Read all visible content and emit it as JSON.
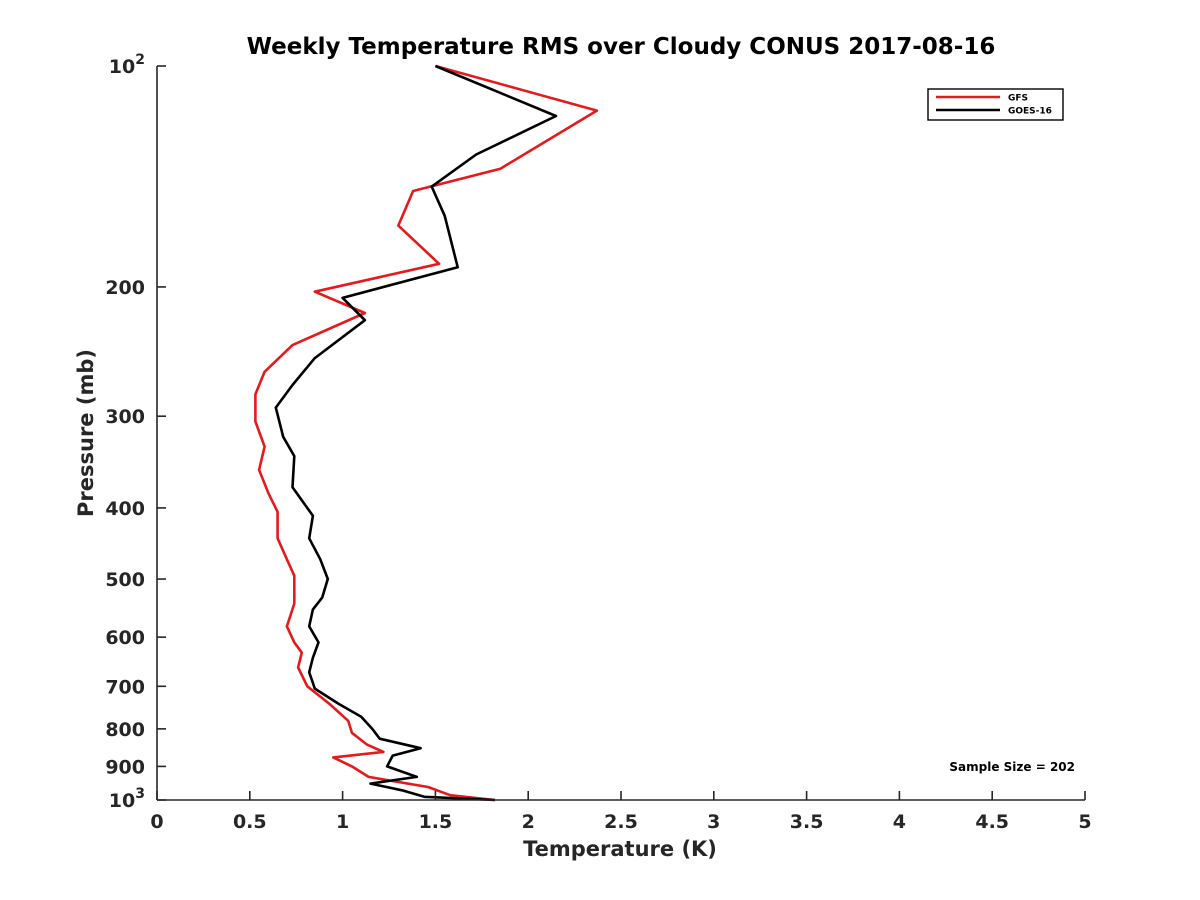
{
  "chart_data": {
    "type": "line",
    "title": "Weekly Temperature RMS over Cloudy CONUS 2017-08-16",
    "xlabel": "Temperature (K)",
    "ylabel": "Pressure (mb)",
    "xlim": [
      0,
      5
    ],
    "ylim": [
      100,
      1000
    ],
    "y_scale": "log",
    "y_reversed": true,
    "x_ticks": [
      0,
      0.5,
      1,
      1.5,
      2,
      2.5,
      3,
      3.5,
      4,
      4.5,
      5
    ],
    "x_tick_labels": [
      "0",
      "0.5",
      "1",
      "1.5",
      "2",
      "2.5",
      "3",
      "3.5",
      "4",
      "4.5",
      "5"
    ],
    "y_ticks": [
      100,
      200,
      300,
      400,
      500,
      600,
      700,
      800,
      900,
      1000
    ],
    "y_tick_labels": [
      {
        "base": "10",
        "exp": "2"
      },
      {
        "base": "200",
        "exp": ""
      },
      {
        "base": "300",
        "exp": ""
      },
      {
        "base": "400",
        "exp": ""
      },
      {
        "base": "500",
        "exp": ""
      },
      {
        "base": "600",
        "exp": ""
      },
      {
        "base": "700",
        "exp": ""
      },
      {
        "base": "800",
        "exp": ""
      },
      {
        "base": "900",
        "exp": ""
      },
      {
        "base": "10",
        "exp": "3"
      }
    ],
    "grid": false,
    "legend_position": "top-right",
    "annotation": "Sample Size = 202",
    "series": [
      {
        "name": "GFS",
        "color": "#e41a1c",
        "points": [
          [
            1.5,
            100
          ],
          [
            2.37,
            115
          ],
          [
            1.85,
            138
          ],
          [
            1.38,
            148
          ],
          [
            1.3,
            165
          ],
          [
            1.52,
            186
          ],
          [
            0.85,
            203
          ],
          [
            1.12,
            217
          ],
          [
            0.73,
            240
          ],
          [
            0.58,
            261
          ],
          [
            0.53,
            280
          ],
          [
            0.53,
            305
          ],
          [
            0.58,
            330
          ],
          [
            0.55,
            355
          ],
          [
            0.6,
            382
          ],
          [
            0.65,
            405
          ],
          [
            0.65,
            440
          ],
          [
            0.7,
            470
          ],
          [
            0.74,
            495
          ],
          [
            0.74,
            540
          ],
          [
            0.7,
            580
          ],
          [
            0.74,
            610
          ],
          [
            0.78,
            630
          ],
          [
            0.76,
            660
          ],
          [
            0.81,
            700
          ],
          [
            0.93,
            740
          ],
          [
            1.03,
            780
          ],
          [
            1.05,
            810
          ],
          [
            1.13,
            840
          ],
          [
            1.22,
            860
          ],
          [
            0.95,
            875
          ],
          [
            1.05,
            900
          ],
          [
            1.14,
            930
          ],
          [
            1.46,
            960
          ],
          [
            1.58,
            985
          ],
          [
            1.82,
            1000
          ]
        ]
      },
      {
        "name": "GOES-16",
        "color": "#000000",
        "points": [
          [
            1.5,
            100
          ],
          [
            2.15,
            117
          ],
          [
            1.72,
            132
          ],
          [
            1.48,
            146
          ],
          [
            1.55,
            160
          ],
          [
            1.62,
            188
          ],
          [
            1.0,
            207
          ],
          [
            1.12,
            222
          ],
          [
            0.85,
            250
          ],
          [
            0.73,
            272
          ],
          [
            0.64,
            292
          ],
          [
            0.68,
            320
          ],
          [
            0.74,
            340
          ],
          [
            0.73,
            375
          ],
          [
            0.84,
            410
          ],
          [
            0.82,
            440
          ],
          [
            0.88,
            470
          ],
          [
            0.92,
            500
          ],
          [
            0.89,
            530
          ],
          [
            0.84,
            550
          ],
          [
            0.82,
            580
          ],
          [
            0.87,
            610
          ],
          [
            0.84,
            640
          ],
          [
            0.82,
            670
          ],
          [
            0.85,
            705
          ],
          [
            0.98,
            740
          ],
          [
            1.1,
            770
          ],
          [
            1.16,
            800
          ],
          [
            1.2,
            825
          ],
          [
            1.42,
            850
          ],
          [
            1.27,
            870
          ],
          [
            1.24,
            900
          ],
          [
            1.4,
            930
          ],
          [
            1.15,
            950
          ],
          [
            1.32,
            970
          ],
          [
            1.44,
            990
          ],
          [
            1.82,
            1000
          ]
        ]
      }
    ]
  }
}
